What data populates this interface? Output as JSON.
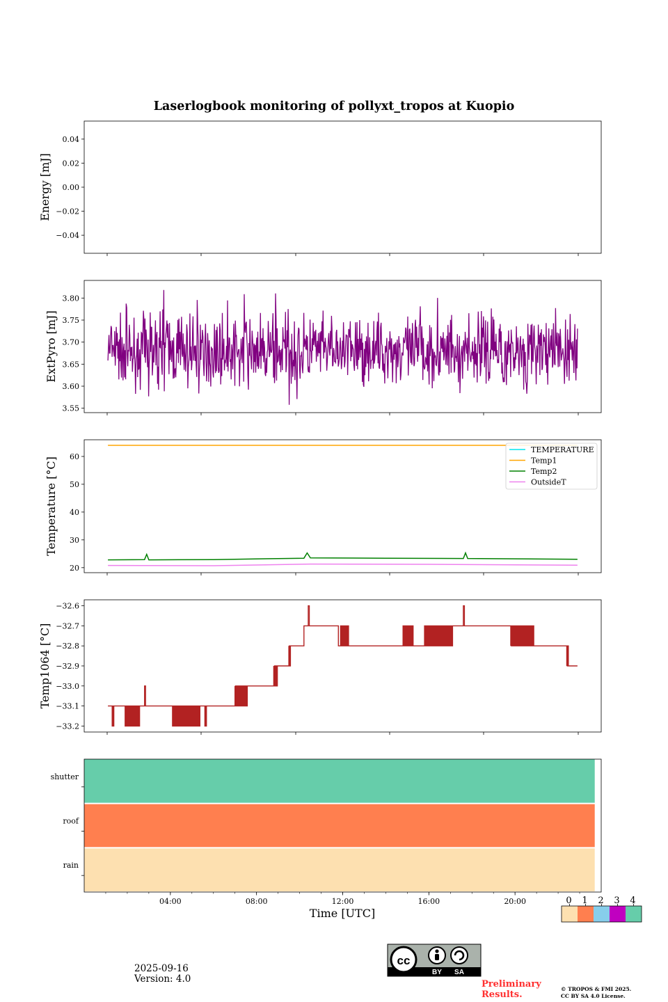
{
  "chart_data": [
    {
      "type": "line",
      "title": "Laserlogbook monitoring of pollyxt_tropos at Kuopio",
      "xlabel": "",
      "ylabel": "Energy [mJ]",
      "xlim": [
        0,
        24
      ],
      "ylim": [
        -0.055,
        0.055
      ],
      "yticks": [
        0.04,
        0.02,
        0.0,
        -0.02,
        -0.04
      ],
      "ytick_labels": [
        "0.04",
        "0.02",
        "0.00",
        "−0.02",
        "−0.04"
      ],
      "series": []
    },
    {
      "type": "line",
      "ylabel": "ExtPyro [mJ]",
      "xlim": [
        0,
        24
      ],
      "ylim": [
        3.54,
        3.84
      ],
      "yticks": [
        3.8,
        3.75,
        3.7,
        3.65,
        3.6,
        3.55
      ],
      "ytick_labels": [
        "3.80",
        "3.75",
        "3.70",
        "3.65",
        "3.60",
        "3.55"
      ],
      "series": [
        {
          "name": "ExtPyro",
          "color": "#800080",
          "noise_range": [
            3.55,
            3.83
          ],
          "mean": 3.68
        }
      ]
    },
    {
      "type": "line",
      "ylabel": "Temperature [°C]",
      "xlim": [
        0,
        24
      ],
      "ylim": [
        18.2,
        66
      ],
      "yticks": [
        60,
        50,
        40,
        30,
        20
      ],
      "ytick_labels": [
        "60",
        "50",
        "40",
        "30",
        "20"
      ],
      "legend_position": "top-right",
      "series": [
        {
          "name": "TEMPERATURE",
          "color": "#00e5ee",
          "x": [],
          "y": []
        },
        {
          "name": "Temp1",
          "color": "#ffa500",
          "x": [
            1.1,
            22.9
          ],
          "y": [
            64,
            64
          ]
        },
        {
          "name": "Temp2",
          "color": "#008000",
          "x": [
            1.1,
            2.8,
            2.9,
            3.0,
            6,
            10.2,
            10.35,
            10.5,
            14,
            17.6,
            17.7,
            17.8,
            22.9
          ],
          "y": [
            22.8,
            22.9,
            24.8,
            22.8,
            22.9,
            23.4,
            25.3,
            23.5,
            23.4,
            23.3,
            25.3,
            23.3,
            23.0
          ]
        },
        {
          "name": "OutsideT",
          "color": "#ee82ee",
          "x": [
            1.1,
            6,
            10.5,
            16,
            22.9
          ],
          "y": [
            20.8,
            20.7,
            21.3,
            21.2,
            20.9
          ]
        }
      ]
    },
    {
      "type": "line",
      "ylabel": "Temp1064 [°C]",
      "xlim": [
        0,
        24
      ],
      "ylim": [
        -33.23,
        -32.57
      ],
      "yticks": [
        -32.6,
        -32.7,
        -32.8,
        -32.9,
        -33.0,
        -33.1,
        -33.2
      ],
      "ytick_labels": [
        "−32.6",
        "−32.7",
        "−32.8",
        "−32.9",
        "−33.0",
        "−33.1",
        "−33.2"
      ],
      "series": [
        {
          "name": "Temp1064",
          "color": "#b22222",
          "steps": [
            {
              "x0": 1.1,
              "x1": 6.0,
              "level": -33.1,
              "dips": [
                -33.2
              ],
              "flicker": [
                [
                  1.3,
                  1.4
                ],
                [
                  1.9,
                  2.6
                ],
                [
                  4.1,
                  5.4
                ],
                [
                  5.6,
                  5.7
                ]
              ],
              "spikes": [
                [
                  2.8,
                  -33.0
                ]
              ]
            },
            {
              "x0": 6.0,
              "x1": 7.0,
              "level": -33.1,
              "dips": [],
              "flicker": [],
              "spikes": []
            },
            {
              "x0": 7.0,
              "x1": 7.6,
              "level": -33.0,
              "dips": [
                -33.1
              ],
              "flicker": [
                [
                  7.0,
                  7.6
                ]
              ],
              "spikes": []
            },
            {
              "x0": 7.6,
              "x1": 8.8,
              "level": -33.0,
              "dips": [],
              "flicker": [],
              "spikes": []
            },
            {
              "x0": 8.8,
              "x1": 9.5,
              "level": -32.9,
              "dips": [
                -33.0
              ],
              "flicker": [
                [
                  8.8,
                  9.0
                ]
              ],
              "spikes": []
            },
            {
              "x0": 9.5,
              "x1": 10.2,
              "level": -32.8,
              "dips": [
                -32.9
              ],
              "flicker": [
                [
                  9.5,
                  9.6
                ]
              ],
              "spikes": []
            },
            {
              "x0": 10.2,
              "x1": 11.8,
              "level": -32.7,
              "dips": [],
              "flicker": [],
              "spikes": [
                [
                  10.4,
                  -32.6
                ]
              ]
            },
            {
              "x0": 11.8,
              "x1": 14.8,
              "level": -32.8,
              "dips": [
                -32.7
              ],
              "flicker": [
                [
                  11.9,
                  12.3
                ]
              ],
              "spikes": []
            },
            {
              "x0": 14.8,
              "x1": 17.1,
              "level": -32.8,
              "dips": [
                -32.7
              ],
              "flicker": [
                [
                  14.8,
                  15.3
                ],
                [
                  15.8,
                  17.1
                ]
              ],
              "spikes": []
            },
            {
              "x0": 17.1,
              "x1": 19.8,
              "level": -32.7,
              "dips": [],
              "flicker": [],
              "spikes": [
                [
                  17.6,
                  -32.6
                ]
              ]
            },
            {
              "x0": 19.8,
              "x1": 21.5,
              "level": -32.8,
              "dips": [
                -32.7
              ],
              "flicker": [
                [
                  19.8,
                  20.9
                ]
              ],
              "spikes": []
            },
            {
              "x0": 21.5,
              "x1": 22.4,
              "level": -32.8,
              "dips": [],
              "flicker": [],
              "spikes": []
            },
            {
              "x0": 22.4,
              "x1": 22.9,
              "level": -32.9,
              "dips": [
                -32.8
              ],
              "flicker": [
                [
                  22.4,
                  22.5
                ]
              ],
              "spikes": []
            }
          ]
        }
      ]
    },
    {
      "type": "heatmap",
      "xlabel": "Time [UTC]",
      "xlim": [
        0,
        24
      ],
      "xticks": [
        4,
        8,
        12,
        16,
        20
      ],
      "xtick_labels": [
        "04:00",
        "08:00",
        "12:00",
        "16:00",
        "20:00"
      ],
      "rows": [
        "shutter",
        "roof",
        "rain"
      ],
      "row_values": [
        4,
        1,
        0
      ],
      "x_end": 23.7,
      "colorbar": {
        "ticks": [
          "0",
          "1",
          "2",
          "3",
          "4"
        ],
        "colors": [
          "#fde0b0",
          "#ff7f4f",
          "#87ceeb",
          "#c000c0",
          "#66cdaa"
        ]
      }
    }
  ],
  "footer": {
    "date": "2025-09-16",
    "version": "Version: 4.0",
    "preliminary_1": "Preliminary",
    "preliminary_2": "Results.",
    "copyright_1": "© TROPOS & FMI 2025.",
    "copyright_2": "CC BY SA 4.0 License.",
    "license_by": "BY",
    "license_sa": "SA"
  }
}
